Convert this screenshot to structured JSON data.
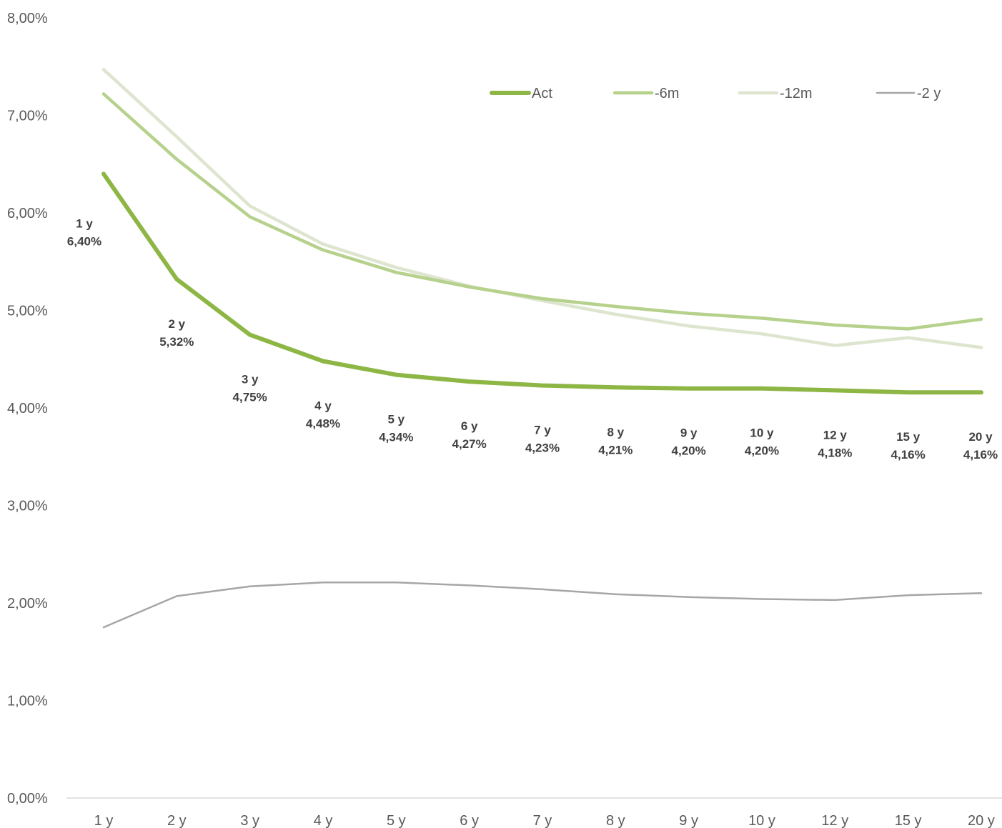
{
  "chart_data": {
    "type": "line",
    "categories": [
      "1 y",
      "2 y",
      "3 y",
      "4 y",
      "5 y",
      "6 y",
      "7 y",
      "8 y",
      "9 y",
      "10 y",
      "12 y",
      "15 y",
      "20 y"
    ],
    "ylim": [
      0,
      8
    ],
    "yticks": [
      "0,00%",
      "1,00%",
      "2,00%",
      "3,00%",
      "4,00%",
      "5,00%",
      "6,00%",
      "7,00%",
      "8,00%"
    ],
    "grid": false,
    "legend_position": "top-right",
    "series": [
      {
        "name": "Act",
        "color": "#8db645",
        "values": [
          6.4,
          5.32,
          4.75,
          4.48,
          4.34,
          4.27,
          4.23,
          4.21,
          4.2,
          4.2,
          4.18,
          4.16,
          4.16
        ],
        "data_labels": [
          "6,40%",
          "5,32%",
          "4,75%",
          "4,48%",
          "4,34%",
          "4,27%",
          "4,23%",
          "4,21%",
          "4,20%",
          "4,20%",
          "4,18%",
          "4,16%",
          "4,16%"
        ]
      },
      {
        "name": "-6m",
        "color": "#b5d18b",
        "values": [
          7.22,
          6.55,
          5.96,
          5.62,
          5.39,
          5.24,
          5.12,
          5.04,
          4.97,
          4.92,
          4.85,
          4.81,
          4.91
        ]
      },
      {
        "name": "-12m",
        "color": "#dde5cf",
        "values": [
          7.47,
          6.78,
          6.07,
          5.68,
          5.44,
          5.25,
          5.1,
          4.96,
          4.84,
          4.76,
          4.64,
          4.72,
          4.62
        ]
      },
      {
        "name": "-2 y",
        "color": "#a6a6a6",
        "values": [
          1.75,
          2.07,
          2.17,
          2.21,
          2.21,
          2.18,
          2.14,
          2.09,
          2.06,
          2.04,
          2.03,
          2.08,
          2.1
        ]
      }
    ]
  }
}
